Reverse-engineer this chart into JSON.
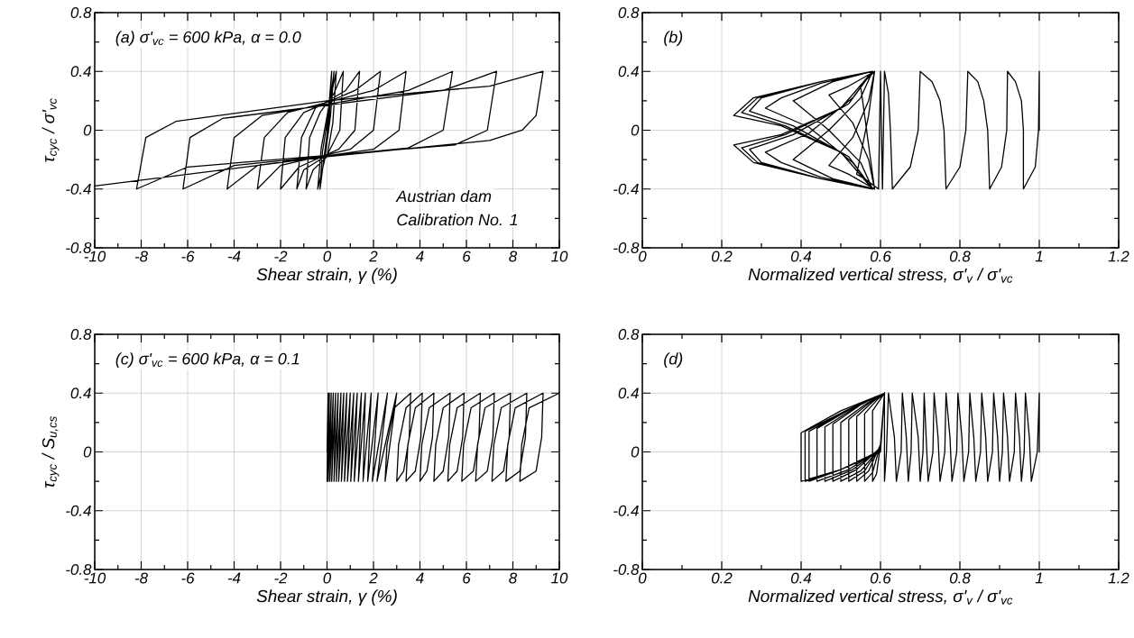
{
  "chart_data": [
    {
      "type": "line",
      "title": "(a) σ'$_{vc}$ = 600 kPa, α = 0.0",
      "xlabel": "Shear strain, γ (%)",
      "ylabel": "τ$_{cyc}$ / σ'$_{vc}$",
      "annotations": [
        "Austrian dam",
        "Calibration No. 1"
      ],
      "grid": true,
      "xlim": [
        -10,
        10
      ],
      "ylim": [
        -0.8,
        0.8
      ],
      "xticks": [
        -10,
        {
          "value": -9,
          "label": null
        },
        -8,
        {
          "value": -7,
          "label": null
        },
        -6,
        {
          "value": -5,
          "label": null
        },
        -4,
        {
          "value": -3,
          "label": null
        },
        -2,
        {
          "value": -1,
          "label": null
        },
        0,
        {
          "value": 1,
          "label": null
        },
        2,
        {
          "value": 3,
          "label": null
        },
        4,
        {
          "value": 5,
          "label": null
        },
        6,
        {
          "value": 7,
          "label": null
        },
        8,
        {
          "value": 9,
          "label": null
        },
        10
      ],
      "yticks": [
        -0.8,
        {
          "value": -0.6,
          "label": null
        },
        -0.4,
        {
          "value": -0.2,
          "label": null
        },
        0,
        {
          "value": 0.2,
          "label": null
        },
        0.4,
        {
          "value": 0.6,
          "label": null
        },
        0.8
      ],
      "series": [
        {
          "color": "#000000",
          "x": [
            0,
            0.1,
            0.2,
            0.1,
            -0.1,
            -0.3,
            -0.2,
            0.1,
            0.3,
            0.15,
            -0.1,
            -0.4,
            -0.25,
            0.1,
            0.4,
            0.25,
            0,
            -0.6,
            -0.9,
            -0.75,
            -0.3,
            0.3,
            0.7,
            0.55,
            0,
            -1,
            -1.3,
            -1.1,
            -0.5,
            0.8,
            1.4,
            1.2,
            0.5,
            -1.2,
            -2,
            -1.8,
            -1,
            1.2,
            2.3,
            2,
            1,
            -2,
            -3,
            -2.7,
            -1.7,
            2,
            3.4,
            3.1,
            2,
            -3,
            -4.3,
            -4,
            -2.8,
            3.5,
            5.4,
            5,
            3.5,
            -4,
            -6.2,
            -5.9,
            -4.5,
            5,
            7.3,
            6.9,
            5.5,
            -6,
            -8.2,
            -7.8,
            -6.5,
            0,
            7,
            9.3,
            9,
            8.4,
            7,
            0,
            -10
          ],
          "values": [
            0,
            0.2,
            0.4,
            0.1,
            -0.15,
            -0.4,
            -0.15,
            0.15,
            0.4,
            0.1,
            -0.2,
            -0.4,
            -0.12,
            0.18,
            0.4,
            0.05,
            -0.18,
            -0.27,
            -0.4,
            -0.05,
            0.12,
            0.25,
            0.4,
            0,
            -0.17,
            -0.27,
            -0.4,
            -0.05,
            0.15,
            0.27,
            0.4,
            0,
            -0.13,
            -0.25,
            -0.4,
            -0.05,
            0.12,
            0.27,
            0.4,
            0,
            -0.13,
            -0.24,
            -0.4,
            -0.05,
            0.12,
            0.27,
            0.4,
            0,
            -0.13,
            -0.24,
            -0.4,
            -0.05,
            0.1,
            0.27,
            0.4,
            0,
            -0.12,
            -0.24,
            -0.4,
            -0.05,
            0.08,
            0.27,
            0.4,
            0,
            -0.1,
            -0.25,
            -0.4,
            -0.05,
            0.06,
            0.2,
            0.3,
            0.4,
            0.1,
            0,
            -0.07,
            -0.18,
            -0.38
          ]
        }
      ]
    },
    {
      "type": "line",
      "title": "(b)",
      "xlabel": "Normalized vertical stress,  σ'$_{v}$ / σ'$_{vc}$",
      "grid": true,
      "xlim": [
        0,
        1.2
      ],
      "ylim": [
        -0.8,
        0.8
      ],
      "xticks": [
        0,
        {
          "value": 0.1,
          "label": null
        },
        0.2,
        {
          "value": 0.3,
          "label": null
        },
        0.4,
        {
          "value": 0.5,
          "label": null
        },
        0.6,
        {
          "value": 0.7,
          "label": null
        },
        0.8,
        {
          "value": 0.9,
          "label": null
        },
        1,
        {
          "value": 1.1,
          "label": null
        },
        1.2
      ],
      "yticks": [
        -0.8,
        {
          "value": -0.6,
          "label": null
        },
        -0.4,
        {
          "value": -0.2,
          "label": null
        },
        0,
        {
          "value": 0.2,
          "label": null
        },
        0.4,
        {
          "value": 0.6,
          "label": null
        },
        0.8
      ],
      "series": [
        {
          "color": "#000000",
          "x": [
            1,
            1,
            0.998,
            0.99,
            0.96,
            0.96,
            0.955,
            0.94,
            0.92,
            0.918,
            0.905,
            0.875,
            0.87,
            0.86,
            0.845,
            0.82,
            0.815,
            0.8,
            0.765,
            0.76,
            0.75,
            0.73,
            0.7,
            0.695,
            0.675,
            0.63,
            0.625,
            0.62,
            0.61,
            0.605,
            0.6,
            0.595,
            0.56,
            0.54,
            0.57,
            0.585,
            0.56,
            0.55,
            0.57,
            0.585,
            0.52,
            0.47,
            0.53,
            0.57,
            0.585,
            0.52,
            0.47,
            0.53,
            0.57,
            0.585,
            0.48,
            0.38,
            0.47,
            0.55,
            0.58,
            0.48,
            0.38,
            0.47,
            0.55,
            0.58,
            0.45,
            0.35,
            0.31,
            0.42,
            0.53,
            0.58,
            0.45,
            0.35,
            0.31,
            0.42,
            0.53,
            0.58,
            0.45,
            0.3,
            0.27,
            0.38,
            0.52,
            0.58,
            0.45,
            0.3,
            0.27,
            0.38,
            0.52,
            0.58,
            0.45,
            0.29,
            0.25,
            0.36,
            0.5,
            0.58,
            0.45,
            0.29,
            0.25,
            0.36,
            0.5,
            0.58,
            0.45,
            0.28,
            0.23,
            0.35,
            0.5,
            0.58,
            0.45,
            0.28,
            0.23,
            0.35,
            0.5,
            0.58
          ],
          "values": [
            0,
            0.4,
            0,
            -0.25,
            -0.4,
            0,
            0.2,
            0.33,
            0.4,
            0,
            -0.25,
            -0.4,
            0,
            0.2,
            0.33,
            0.4,
            0,
            -0.25,
            -0.4,
            0,
            0.2,
            0.33,
            0.4,
            0,
            -0.25,
            -0.4,
            0,
            0.25,
            0.4,
            -0.4,
            0.4,
            -0.4,
            -0.33,
            -0.3,
            0.1,
            0.4,
            0.33,
            0.3,
            -0.1,
            -0.4,
            -0.3,
            -0.24,
            -0.05,
            0.2,
            0.4,
            0.3,
            0.24,
            0.05,
            -0.2,
            -0.4,
            -0.33,
            -0.2,
            0,
            0.22,
            0.4,
            0.33,
            0.2,
            0,
            -0.22,
            -0.4,
            -0.32,
            -0.22,
            -0.15,
            -0.02,
            0.22,
            0.4,
            0.32,
            0.22,
            0.15,
            0.02,
            -0.22,
            -0.4,
            -0.33,
            -0.22,
            -0.13,
            -0.03,
            0.18,
            0.4,
            0.33,
            0.22,
            0.13,
            0.03,
            -0.18,
            -0.4,
            -0.33,
            -0.22,
            -0.12,
            -0.03,
            0.15,
            0.4,
            0.33,
            0.22,
            0.12,
            0.03,
            -0.15,
            -0.4,
            -0.33,
            -0.22,
            -0.1,
            -0.03,
            0.15,
            0.4,
            0.33,
            0.22,
            0.1,
            0.03,
            -0.15,
            -0.4
          ]
        }
      ]
    },
    {
      "type": "line",
      "title": "(c) σ'$_{vc}$ = 600 kPa, α = 0.1",
      "xlabel": "Shear strain, γ (%)",
      "ylabel": "τ$_{cyc}$ / S$_{u,cs}$",
      "grid": true,
      "xlim": [
        -10,
        10
      ],
      "ylim": [
        -0.8,
        0.8
      ],
      "xticks": [
        -10,
        {
          "value": -9,
          "label": null
        },
        -8,
        {
          "value": -7,
          "label": null
        },
        -6,
        {
          "value": -5,
          "label": null
        },
        -4,
        {
          "value": -3,
          "label": null
        },
        -2,
        {
          "value": -1,
          "label": null
        },
        0,
        {
          "value": 1,
          "label": null
        },
        2,
        {
          "value": 3,
          "label": null
        },
        4,
        {
          "value": 5,
          "label": null
        },
        6,
        {
          "value": 7,
          "label": null
        },
        8,
        {
          "value": 9,
          "label": null
        },
        10
      ],
      "yticks": [
        -0.8,
        {
          "value": -0.6,
          "label": null
        },
        -0.4,
        {
          "value": -0.2,
          "label": null
        },
        0,
        {
          "value": 0.2,
          "label": null
        },
        0.4,
        {
          "value": 0.6,
          "label": null
        },
        0.8
      ],
      "series": [
        {
          "color": "#000000",
          "x": [
            0,
            0.05,
            0,
            0.1,
            0.05,
            0.18,
            0.12,
            0.27,
            0.2,
            0.37,
            0.3,
            0.48,
            0.4,
            0.6,
            0.5,
            0.72,
            0.62,
            0.85,
            0.75,
            1.0,
            0.88,
            1.15,
            1.02,
            1.3,
            1.17,
            1.48,
            1.35,
            1.65,
            1.55,
            1.9,
            1.75,
            2.2,
            1.95,
            2.6,
            2.15,
            3.0,
            2.5,
            2.58,
            2.9,
            3.6,
            3.54,
            3.3,
            3.0,
            3.08,
            3.4,
            4.1,
            4.04,
            3.8,
            3.4,
            3.48,
            3.8,
            4.6,
            4.54,
            4.3,
            4.0,
            4.08,
            4.4,
            5.3,
            5.24,
            5.0,
            4.6,
            4.68,
            5.0,
            5.9,
            5.84,
            5.6,
            5.2,
            5.28,
            5.6,
            6.6,
            6.54,
            6.3,
            5.8,
            5.88,
            6.2,
            7.2,
            7.14,
            6.9,
            6.4,
            6.48,
            6.8,
            7.9,
            7.84,
            7.6,
            7.1,
            7.18,
            7.5,
            8.6,
            8.54,
            8.3,
            7.7,
            7.78,
            8.1,
            9.3,
            9.24,
            9.0,
            8.3,
            8.38,
            8.7,
            10
          ],
          "values": [
            0,
            0.4,
            -0.2,
            0.4,
            -0.2,
            0.4,
            -0.2,
            0.4,
            -0.2,
            0.4,
            -0.2,
            0.4,
            -0.2,
            0.4,
            -0.2,
            0.4,
            -0.2,
            0.4,
            -0.2,
            0.4,
            -0.2,
            0.4,
            -0.2,
            0.4,
            -0.2,
            0.4,
            -0.2,
            0.4,
            -0.2,
            0.4,
            -0.2,
            0.4,
            -0.2,
            0.4,
            -0.2,
            0.4,
            -0.2,
            0.05,
            0.3,
            0.4,
            0.1,
            -0.13,
            -0.2,
            0.05,
            0.3,
            0.4,
            0.1,
            -0.13,
            -0.2,
            0.05,
            0.3,
            0.4,
            0.1,
            -0.13,
            -0.2,
            0.05,
            0.3,
            0.4,
            0.1,
            -0.13,
            -0.2,
            0.05,
            0.3,
            0.4,
            0.1,
            -0.13,
            -0.2,
            0.05,
            0.3,
            0.4,
            0.1,
            -0.13,
            -0.2,
            0.05,
            0.3,
            0.4,
            0.1,
            -0.13,
            -0.2,
            0.05,
            0.3,
            0.4,
            0.1,
            -0.13,
            -0.2,
            0.05,
            0.3,
            0.4,
            0.1,
            -0.13,
            -0.2,
            0.05,
            0.3,
            0.4,
            0.1,
            -0.13,
            -0.2,
            0.05,
            0.3,
            0.4
          ]
        }
      ]
    },
    {
      "type": "line",
      "title": "(d)",
      "xlabel": "Normalized vertical stress,  σ'$_{v}$ / σ'$_{vc}$",
      "grid": true,
      "xlim": [
        0,
        1.2
      ],
      "ylim": [
        -0.8,
        0.8
      ],
      "xticks": [
        0,
        {
          "value": 0.1,
          "label": null
        },
        0.2,
        {
          "value": 0.3,
          "label": null
        },
        0.4,
        {
          "value": 0.5,
          "label": null
        },
        0.6,
        {
          "value": 0.7,
          "label": null
        },
        0.8,
        {
          "value": 0.9,
          "label": null
        },
        1,
        {
          "value": 1.1,
          "label": null
        },
        1.2
      ],
      "yticks": [
        -0.8,
        {
          "value": -0.6,
          "label": null
        },
        -0.4,
        {
          "value": -0.2,
          "label": null
        },
        0,
        {
          "value": 0.2,
          "label": null
        },
        0.4,
        {
          "value": 0.6,
          "label": null
        },
        0.8
      ],
      "series": [
        {
          "color": "#000000",
          "x": [
            1,
            1,
            0.995,
            0.98,
            0.975,
            0.965,
            0.962,
            0.955,
            0.95,
            0.94,
            0.937,
            0.925,
            0.92,
            0.91,
            0.907,
            0.9,
            0.895,
            0.885,
            0.882,
            0.87,
            0.865,
            0.855,
            0.852,
            0.84,
            0.835,
            0.825,
            0.822,
            0.81,
            0.805,
            0.795,
            0.792,
            0.78,
            0.775,
            0.765,
            0.762,
            0.75,
            0.745,
            0.735,
            0.732,
            0.72,
            0.715,
            0.71,
            0.707,
            0.7,
            0.695,
            0.68,
            0.677,
            0.67,
            0.665,
            0.655,
            0.652,
            0.64,
            0.635,
            0.62,
            0.615,
            0.61,
            0.61,
            0.6,
            0.59,
            0.58,
            0.58,
            0.6,
            0.61,
            0.6,
            0.58,
            0.56,
            0.56,
            0.59,
            0.61,
            0.6,
            0.57,
            0.54,
            0.54,
            0.58,
            0.61,
            0.6,
            0.56,
            0.52,
            0.52,
            0.57,
            0.61,
            0.6,
            0.55,
            0.5,
            0.5,
            0.56,
            0.61,
            0.6,
            0.54,
            0.48,
            0.48,
            0.55,
            0.61,
            0.6,
            0.53,
            0.46,
            0.46,
            0.54,
            0.61,
            0.6,
            0.52,
            0.44,
            0.44,
            0.53,
            0.61,
            0.6,
            0.5,
            0.42,
            0.42,
            0.52,
            0.61,
            0.6,
            0.5,
            0.41,
            0.41,
            0.52,
            0.61,
            0.6,
            0.5,
            0.4,
            0.4,
            0.5,
            0.61
          ],
          "values": [
            0,
            0.4,
            0,
            -0.2,
            0.1,
            0.4,
            0,
            -0.2,
            0.1,
            0.4,
            0,
            -0.2,
            0.1,
            0.4,
            0,
            -0.2,
            0.1,
            0.4,
            0,
            -0.2,
            0.1,
            0.4,
            0,
            -0.2,
            0.1,
            0.4,
            0,
            -0.2,
            0.1,
            0.4,
            0,
            -0.2,
            0.1,
            0.4,
            0,
            -0.2,
            0.1,
            0.4,
            0,
            -0.2,
            0.1,
            0.4,
            0,
            -0.2,
            0.1,
            0.4,
            0,
            -0.2,
            0.1,
            0.4,
            0,
            -0.2,
            0.1,
            0.4,
            0,
            -0.2,
            0.4,
            0.05,
            -0.15,
            -0.2,
            0.28,
            0.36,
            0.4,
            0.05,
            -0.14,
            -0.2,
            0.26,
            0.35,
            0.4,
            0.05,
            -0.13,
            -0.2,
            0.24,
            0.34,
            0.4,
            0.04,
            -0.13,
            -0.2,
            0.22,
            0.33,
            0.4,
            0.03,
            -0.13,
            -0.2,
            0.2,
            0.32,
            0.4,
            0.03,
            -0.12,
            -0.2,
            0.19,
            0.32,
            0.4,
            0.02,
            -0.12,
            -0.2,
            0.17,
            0.31,
            0.4,
            0.02,
            -0.12,
            -0.2,
            0.16,
            0.3,
            0.4,
            0.01,
            -0.12,
            -0.2,
            0.14,
            0.29,
            0.4,
            0.01,
            -0.12,
            -0.2,
            0.14,
            0.29,
            0.4,
            0,
            -0.12,
            -0.2,
            0.13,
            0.28,
            0.4
          ]
        }
      ]
    }
  ]
}
